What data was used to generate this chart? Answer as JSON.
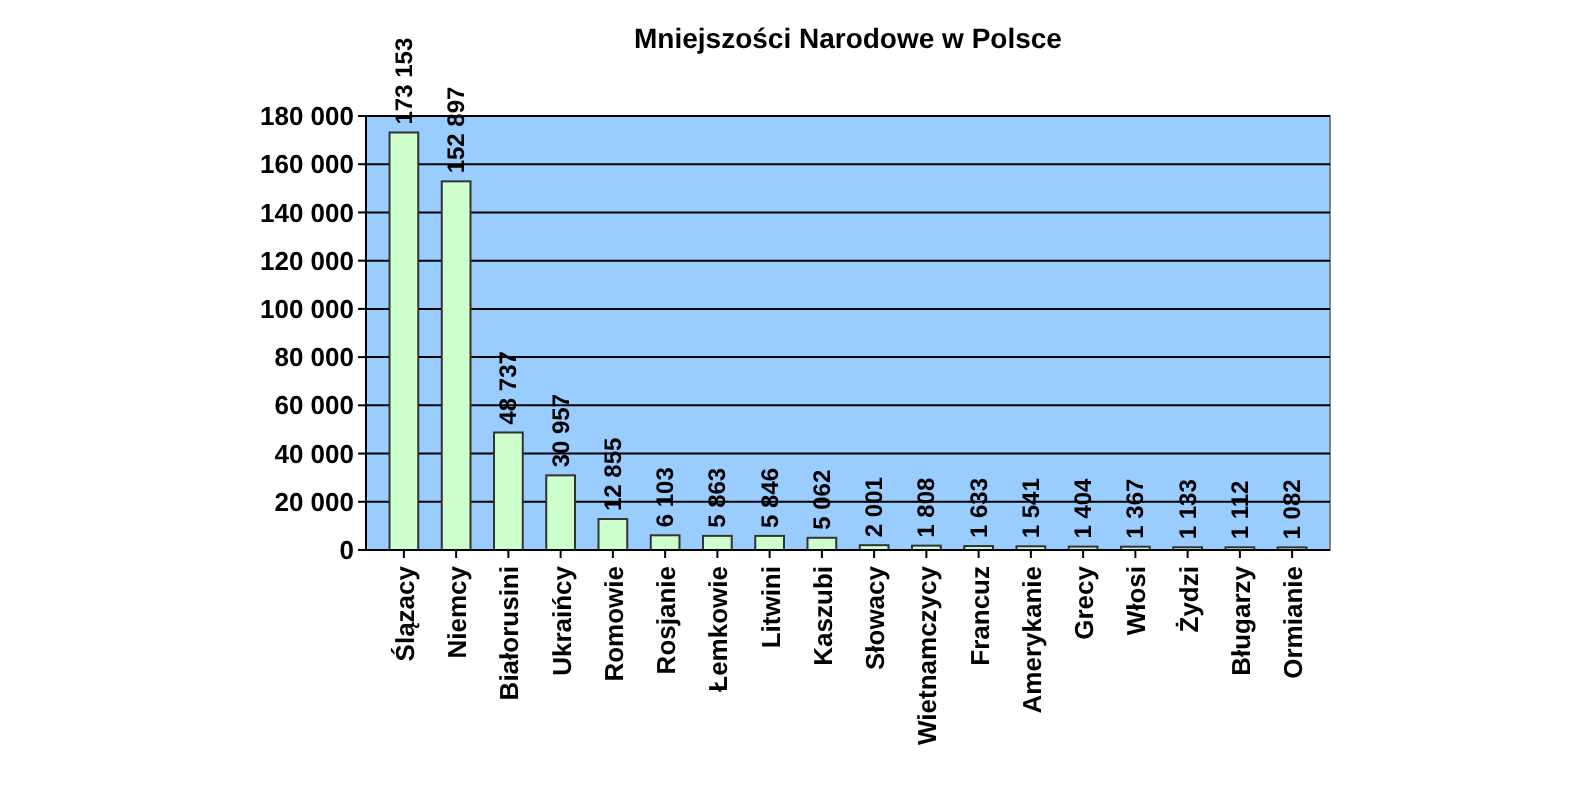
{
  "chart_data": {
    "type": "bar",
    "title": "Mniejszości Narodowe w Polsce",
    "categories": [
      "Ślązacy",
      "Niemcy",
      "Białorusini",
      "Ukraińcy",
      "Romowie",
      "Rosjanie",
      "Łemkowie",
      "Litwini",
      "Kaszubi",
      "Słowacy",
      "Wietnamczycy",
      "Francuz",
      "Amerykanie",
      "Grecy",
      "Włosi",
      "Żydzi",
      "Bługarzy",
      "Ormianie"
    ],
    "values": [
      173153,
      152897,
      48737,
      30957,
      12855,
      6103,
      5863,
      5846,
      5062,
      2001,
      1808,
      1633,
      1541,
      1404,
      1367,
      1133,
      1112,
      1082
    ],
    "value_labels": [
      "173 153",
      "152 897",
      "48 737",
      "30 957",
      "12 855",
      "6 103",
      "5 863",
      "5 846",
      "5 062",
      "2 001",
      "1 808",
      "1 633",
      "1 541",
      "1 404",
      "1 367",
      "1 133",
      "1 112",
      "1 082"
    ],
    "color": "#ccffcc",
    "ylim": [
      0,
      180000
    ],
    "yticks": [
      {
        "value": 0,
        "label": "0"
      },
      {
        "value": 20000,
        "label": "20 000"
      },
      {
        "value": 40000,
        "label": "40 000"
      },
      {
        "value": 60000,
        "label": "60 000"
      },
      {
        "value": 80000,
        "label": "80 000"
      },
      {
        "value": 100000,
        "label": "100 000"
      },
      {
        "value": 120000,
        "label": "120 000"
      },
      {
        "value": 140000,
        "label": "140 000"
      },
      {
        "value": 160000,
        "label": "160 000"
      },
      {
        "value": 180000,
        "label": "180 000"
      }
    ],
    "grid": "y"
  }
}
